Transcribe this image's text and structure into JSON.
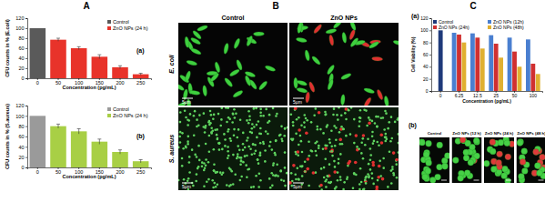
{
  "panel_labels": [
    "A",
    "B",
    "C"
  ],
  "chart_data": [
    {
      "type": "bar",
      "annotations": [
        "(a)"
      ],
      "x_label": "Concentration (pg/mL)",
      "y_label": "CFU counts in % (E.coli)",
      "categories": [
        "0",
        "50",
        "100",
        "150",
        "200",
        "250"
      ],
      "series": [
        {
          "name": "Control",
          "color": "#5a5a5a",
          "values": [
            100,
            null,
            null,
            null,
            null,
            null
          ]
        },
        {
          "name": "ZnO NPs (24 h)",
          "color": "#e8332a",
          "values": [
            null,
            77,
            60,
            43,
            22,
            8
          ],
          "errors": [
            null,
            3,
            3,
            4,
            3,
            2
          ]
        }
      ],
      "ylim": [
        0,
        120
      ],
      "yticks": [
        0,
        20,
        40,
        60,
        80,
        100,
        120
      ],
      "grid": false,
      "legend": "upper right"
    },
    {
      "type": "bar",
      "annotations": [
        "(b)"
      ],
      "x_label": "Concentration (pg/mL)",
      "y_label": "CFU counts in % (S.aureus)",
      "categories": [
        "0",
        "50",
        "100",
        "150",
        "200",
        "250"
      ],
      "series": [
        {
          "name": "Control",
          "color": "#9a9a9a",
          "values": [
            100,
            null,
            null,
            null,
            null,
            null
          ]
        },
        {
          "name": "ZnO NPs (24 h)",
          "color": "#a8cf45",
          "values": [
            null,
            80,
            70,
            50,
            30,
            12
          ],
          "errors": [
            null,
            4,
            5,
            5,
            4,
            3
          ]
        }
      ],
      "ylim": [
        0,
        120
      ],
      "yticks": [
        0,
        20,
        40,
        60,
        80,
        100,
        120
      ],
      "grid": false,
      "legend": "upper right"
    },
    {
      "type": "bar",
      "annotations": [
        "(a)"
      ],
      "x_label": "Concentration (pg/mL)",
      "y_label": "Cell Viability (%)",
      "categories": [
        "0",
        "6.25",
        "12.5",
        "25",
        "50",
        "100"
      ],
      "series": [
        {
          "name": "Control",
          "color": "#1f3a7a",
          "values": [
            100,
            null,
            null,
            null,
            null,
            null
          ]
        },
        {
          "name": "ZnO NPs (12h)",
          "color": "#4a7fd0",
          "values": [
            null,
            96,
            95,
            92,
            88,
            85
          ]
        },
        {
          "name": "ZnO NPs (24h)",
          "color": "#d03030",
          "values": [
            null,
            93,
            88,
            78,
            65,
            45
          ]
        },
        {
          "name": "ZnO NPs (48h)",
          "color": "#e0b030",
          "values": [
            null,
            80,
            70,
            55,
            40,
            28
          ]
        }
      ],
      "ylim": [
        0,
        120
      ],
      "yticks": [
        0,
        20,
        40,
        60,
        80,
        100,
        120
      ],
      "grid": false,
      "legend": "upper right"
    }
  ],
  "micrographs": {
    "B": {
      "columns": [
        "Control",
        "ZnO NPs"
      ],
      "rows": [
        "E. coli",
        "S. aureus"
      ],
      "scale_bar": "5µm"
    },
    "C": {
      "label": "(b)",
      "columns": [
        "Control",
        "ZnO NPs (12 h)",
        "ZnO NPs (24 h)",
        "ZnO NPs (48 h)"
      ]
    }
  }
}
